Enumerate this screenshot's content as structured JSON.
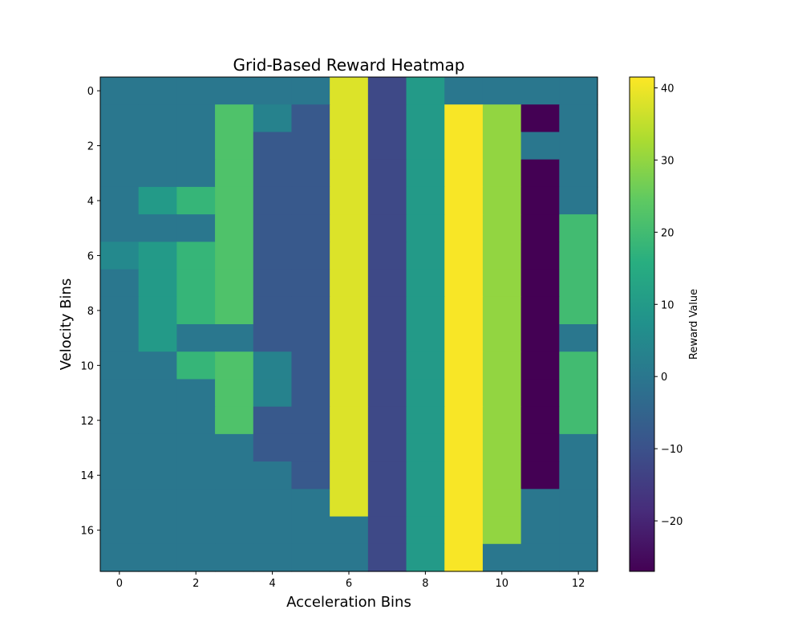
{
  "chart_data": {
    "type": "heatmap",
    "title": "Grid-Based Reward Heatmap",
    "xlabel": "Acceleration Bins",
    "ylabel": "Velocity Bins",
    "colorbar_label": "Reward Value",
    "colormap": "viridis",
    "vmin": -27,
    "vmax": 41.5,
    "x_ticks": [
      "0",
      "2",
      "4",
      "6",
      "8",
      "10",
      "12"
    ],
    "y_ticks": [
      "0",
      "2",
      "4",
      "6",
      "8",
      "10",
      "12",
      "14",
      "16"
    ],
    "colorbar_ticks": [
      "40",
      "30",
      "20",
      "10",
      "0",
      "−10",
      "−20"
    ],
    "n_cols": 13,
    "n_rows": 18,
    "values": [
      [
        0,
        0,
        0,
        0,
        0,
        0,
        38,
        -12,
        10,
        0,
        0,
        0,
        0
      ],
      [
        0,
        0,
        0,
        22,
        3,
        -8,
        38,
        -12,
        10,
        41,
        30,
        -27,
        0
      ],
      [
        0,
        0,
        0,
        22,
        -8,
        -8,
        38,
        -12,
        10,
        41,
        30,
        0,
        0
      ],
      [
        0,
        0,
        0,
        22,
        -8,
        -8,
        38,
        -12,
        10,
        41,
        30,
        -27,
        0
      ],
      [
        0,
        10,
        18,
        22,
        -8,
        -8,
        38,
        -12,
        10,
        41,
        30,
        -27,
        0
      ],
      [
        0,
        0,
        0,
        22,
        -8,
        -8,
        38,
        -12,
        10,
        41,
        30,
        -27,
        20
      ],
      [
        5,
        10,
        18,
        22,
        -8,
        -8,
        38,
        -12,
        10,
        41,
        30,
        -27,
        20
      ],
      [
        0,
        10,
        18,
        22,
        -8,
        -8,
        38,
        -12,
        10,
        41,
        30,
        -27,
        20
      ],
      [
        0,
        10,
        18,
        22,
        -8,
        -8,
        38,
        -12,
        10,
        41,
        30,
        -27,
        20
      ],
      [
        0,
        10,
        0,
        0,
        -8,
        -8,
        38,
        -12,
        10,
        41,
        30,
        -27,
        0
      ],
      [
        0,
        0,
        18,
        22,
        3,
        -8,
        38,
        -12,
        10,
        41,
        30,
        -27,
        20
      ],
      [
        0,
        0,
        0,
        22,
        3,
        -8,
        38,
        -12,
        10,
        41,
        30,
        -27,
        20
      ],
      [
        0,
        0,
        0,
        22,
        -8,
        -8,
        38,
        -12,
        10,
        41,
        30,
        -27,
        20
      ],
      [
        0,
        0,
        0,
        0,
        -8,
        -8,
        38,
        -12,
        10,
        41,
        30,
        -27,
        0
      ],
      [
        0,
        0,
        0,
        0,
        0,
        -8,
        38,
        -12,
        10,
        41,
        30,
        -27,
        0
      ],
      [
        0,
        0,
        0,
        0,
        0,
        0,
        38,
        -12,
        10,
        41,
        30,
        0,
        0
      ],
      [
        0,
        0,
        0,
        0,
        0,
        0,
        0,
        -12,
        10,
        41,
        30,
        0,
        0
      ],
      [
        0,
        0,
        0,
        0,
        0,
        0,
        0,
        -12,
        10,
        41,
        0,
        0,
        0
      ]
    ]
  }
}
